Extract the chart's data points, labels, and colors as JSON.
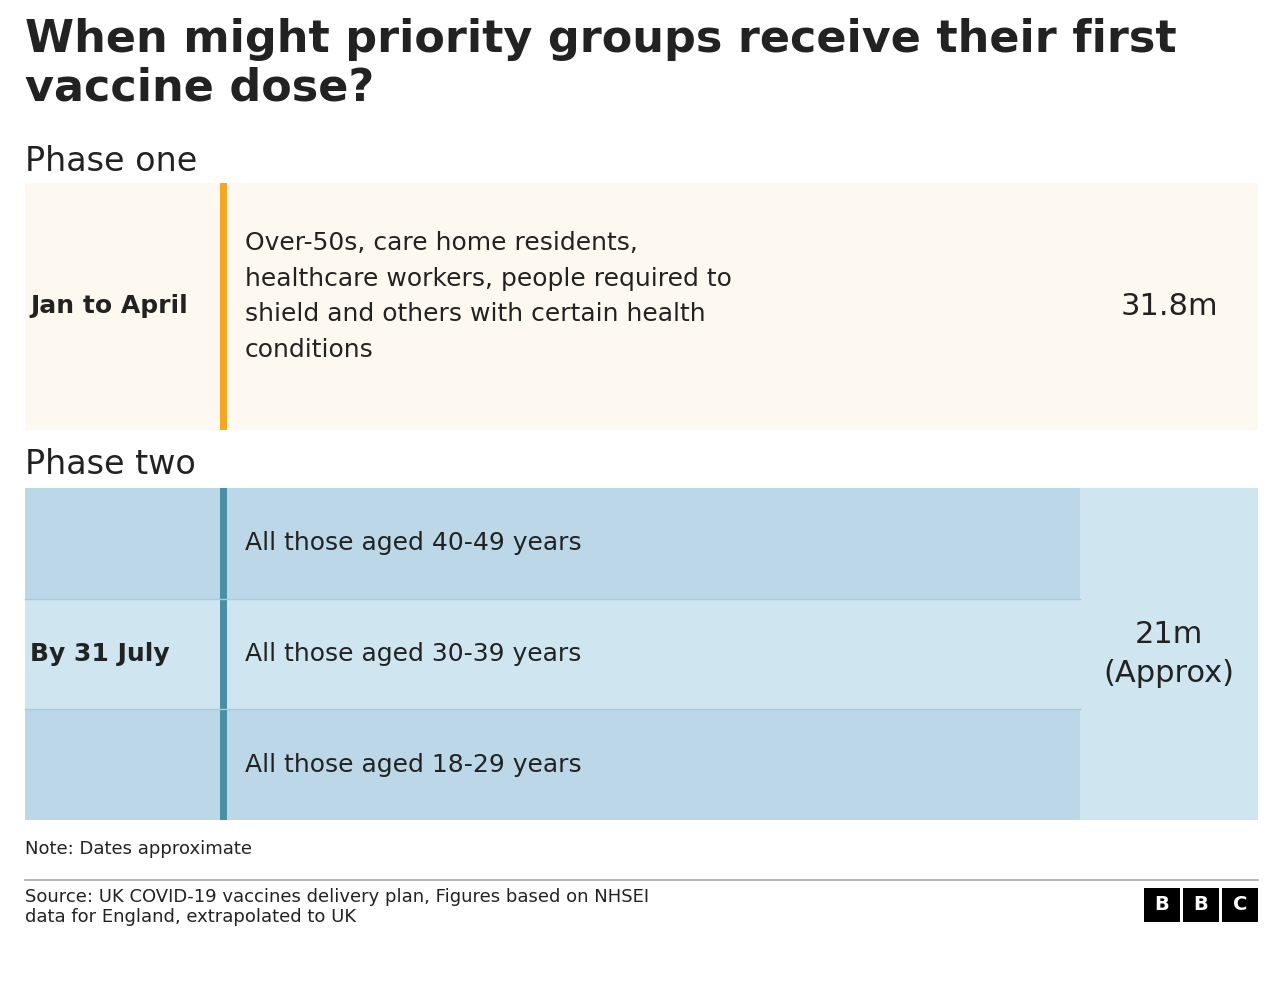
{
  "title_line1": "When might priority groups receive their first",
  "title_line2": "vaccine dose?",
  "title_fontsize": 32,
  "bg_color": "#ffffff",
  "phase_one_label": "Phase one",
  "phase_two_label": "Phase two",
  "phase_label_fontsize": 24,
  "row1_date": "Jan to April",
  "row1_description": "Over-50s, care home residents,\nhealthcare workers, people required to\nshield and others with certain health\nconditions",
  "row1_count": "31.8m",
  "row1_bg": "#fef9f0",
  "row1_right_bg": "#fef9f0",
  "row1_bar_color": "#f5a623",
  "row2_date": "By 31 July",
  "row2_count": "21m\n(Approx)",
  "row2_bg_light": "#cfe5f0",
  "row2_bg_mid": "#bcd8e8",
  "row2_bar_color": "#4a90a4",
  "row2_items": [
    "All those aged 40-49 years",
    "All those aged 30-39 years",
    "All those aged 18-29 years"
  ],
  "note": "Note: Dates approximate",
  "source_line1": "Source: UK COVID-19 vaccines delivery plan, Figures based on NHSEI",
  "source_line2": "data for England, extrapolated to UK",
  "source_fontsize": 13,
  "note_fontsize": 13,
  "date_fontsize": 18,
  "desc_fontsize": 18,
  "count_fontsize": 22,
  "bbc_bg": "#000000",
  "bbc_text": "#ffffff",
  "text_dark": "#222222",
  "separator_color": "#aaaaaa"
}
